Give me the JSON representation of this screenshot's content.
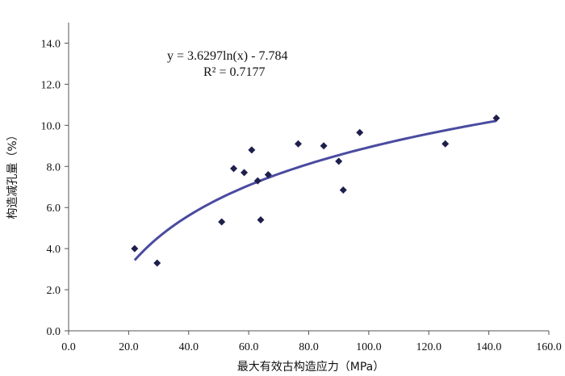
{
  "chart_data": {
    "type": "scatter",
    "xlabel": "最大有效古构造应力（MPa）",
    "ylabel": "构造减孔量（%）",
    "xlim": [
      0,
      160
    ],
    "ylim": [
      0,
      15
    ],
    "x_ticks": [
      "0.0",
      "20.0",
      "40.0",
      "60.0",
      "80.0",
      "100.0",
      "120.0",
      "140.0",
      "160.0"
    ],
    "y_ticks": [
      "0.0",
      "2.0",
      "4.0",
      "6.0",
      "8.0",
      "10.0",
      "12.0",
      "14.0"
    ],
    "grid": false,
    "marker": "diamond",
    "point_color": "#1f1f4d",
    "series": [
      {
        "points": [
          [
            22,
            4.0
          ],
          [
            29.5,
            3.3
          ],
          [
            51,
            5.3
          ],
          [
            55,
            7.9
          ],
          [
            58.5,
            7.7
          ],
          [
            61,
            8.8
          ],
          [
            63,
            7.3
          ],
          [
            64,
            5.4
          ],
          [
            66.5,
            7.6
          ],
          [
            76.5,
            9.1
          ],
          [
            85,
            9.0
          ],
          [
            90,
            8.25
          ],
          [
            91.5,
            6.85
          ],
          [
            97,
            9.65
          ],
          [
            125.5,
            9.1
          ],
          [
            142.5,
            10.35
          ]
        ]
      }
    ],
    "trendline": {
      "type": "logarithmic",
      "a": 3.6297,
      "b": -7.784,
      "x_range": [
        22,
        142.5
      ],
      "color": "#4a4ba0",
      "equation": "y = 3.6297ln(x) - 7.784",
      "r_squared": "R² = 0.7177"
    }
  }
}
